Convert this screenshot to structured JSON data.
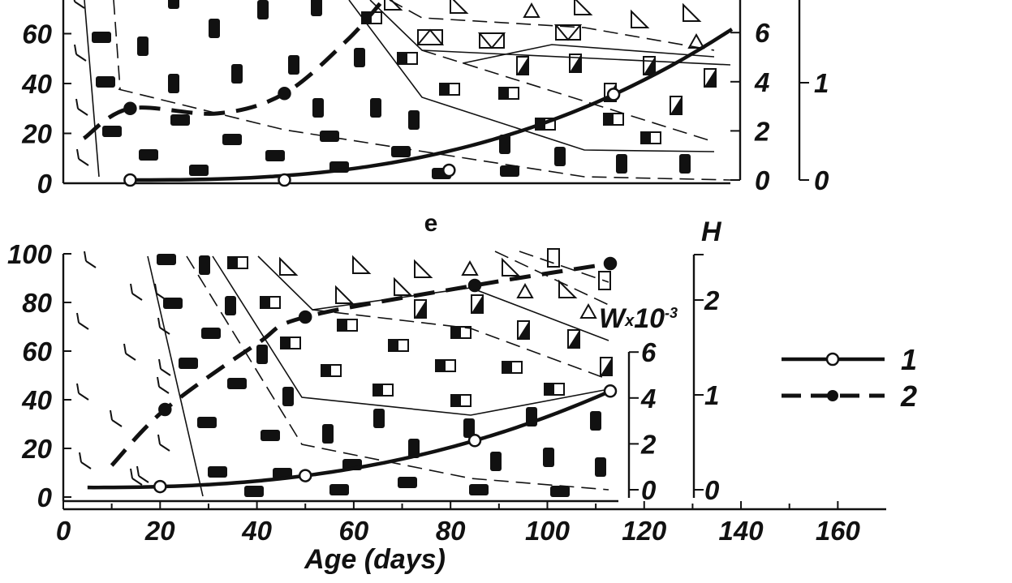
{
  "panel_e_label": "e",
  "x_axis_title": "Age (days)",
  "h_axis_label": "H",
  "w_axis_label": "W",
  "w_axis_mult": "x",
  "w_axis_base": "10",
  "w_axis_exp": "-3",
  "legend": [
    {
      "label": "1",
      "style": "solid line, open circles"
    },
    {
      "label": "2",
      "style": "dashed line, filled circles"
    }
  ],
  "colors": {
    "ink": "#111111",
    "background": "#ffffff"
  },
  "chart_data": [
    {
      "type": "line",
      "panel": "upper (partially visible)",
      "left_ticks": [
        "0",
        "20",
        "40",
        "60"
      ],
      "w_ticks": [
        "0",
        "2",
        "4",
        "6"
      ],
      "h_ticks": [
        "0",
        "1"
      ],
      "ylim_left": [
        0,
        66
      ],
      "ylim_w": [
        0,
        6.6
      ],
      "ylim_h": [
        0,
        1.6
      ],
      "xlim": [
        0,
        160
      ],
      "series": [
        {
          "name": "1",
          "points": [
            [
              13,
              0.0
            ],
            [
              43,
              0.0
            ],
            [
              75,
              0.1
            ],
            [
              107,
              0.88
            ],
            [
              130,
              1.55
            ]
          ]
        },
        {
          "name": "2",
          "points": [
            [
              4,
              18
            ],
            [
              13,
              30
            ],
            [
              30,
              28
            ],
            [
              43,
              36
            ],
            [
              55,
              57
            ],
            [
              62,
              73
            ]
          ]
        }
      ],
      "category_symbols": [
        "angle",
        "black rounded rectangle",
        "half-filled rectangle",
        "triangle",
        "triangle in rectangle"
      ]
    },
    {
      "type": "line",
      "panel": "e",
      "left_ticks": [
        "0",
        "20",
        "40",
        "60",
        "80",
        "100"
      ],
      "x_ticks": [
        "0",
        "20",
        "40",
        "60",
        "80",
        "100",
        "120",
        "140",
        "160"
      ],
      "w_ticks": [
        "0",
        "2",
        "4",
        "6"
      ],
      "h_ticks": [
        "0",
        "1",
        "2"
      ],
      "xlim": [
        0,
        170
      ],
      "ylim_left": [
        0,
        100
      ],
      "ylim_w": [
        0,
        6
      ],
      "ylim_h": [
        0,
        2.5
      ],
      "series": [
        {
          "name": "1",
          "points": [
            [
              5,
              0.1
            ],
            [
              20,
              0.1
            ],
            [
              50,
              0.6
            ],
            [
              85,
              1.8
            ],
            [
              113,
              4.3
            ]
          ]
        },
        {
          "name": "2",
          "points": [
            [
              10,
              13
            ],
            [
              21,
              36
            ],
            [
              40,
              63
            ],
            [
              50,
              74
            ],
            [
              85,
              87
            ],
            [
              113,
              96
            ]
          ]
        }
      ],
      "category_symbols": [
        "angle",
        "black rounded rectangle",
        "half-filled rectangle",
        "triangle",
        "open rectangle"
      ]
    }
  ]
}
